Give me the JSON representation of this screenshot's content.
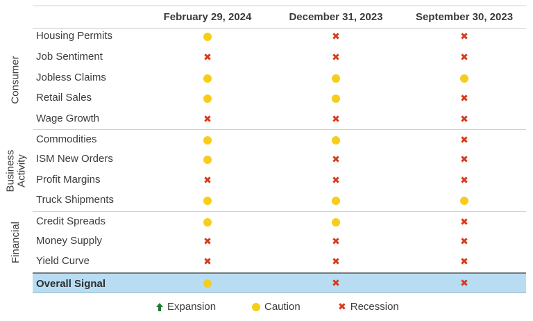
{
  "columns": [
    "February 29, 2024",
    "December 31, 2023",
    "September 30, 2023"
  ],
  "groups": [
    {
      "label": "Consumer"
    },
    {
      "label_lines": [
        "Business",
        "Activity"
      ]
    },
    {
      "label": "Financial"
    }
  ],
  "rows": [
    {
      "label": "Housing Permits",
      "signals": [
        "caution",
        "recession",
        "recession"
      ]
    },
    {
      "label": "Job Sentiment",
      "signals": [
        "recession",
        "recession",
        "recession"
      ]
    },
    {
      "label": "Jobless Claims",
      "signals": [
        "caution",
        "caution",
        "caution"
      ]
    },
    {
      "label": "Retail Sales",
      "signals": [
        "caution",
        "caution",
        "recession"
      ]
    },
    {
      "label": "Wage Growth",
      "signals": [
        "recession",
        "recession",
        "recession"
      ]
    },
    {
      "label": "Commodities",
      "signals": [
        "caution",
        "caution",
        "recession"
      ]
    },
    {
      "label": "ISM New Orders",
      "signals": [
        "caution",
        "recession",
        "recession"
      ]
    },
    {
      "label": "Profit Margins",
      "signals": [
        "recession",
        "recession",
        "recession"
      ]
    },
    {
      "label": "Truck Shipments",
      "signals": [
        "caution",
        "caution",
        "caution"
      ]
    },
    {
      "label": "Credit Spreads",
      "signals": [
        "caution",
        "caution",
        "recession"
      ]
    },
    {
      "label": "Money Supply",
      "signals": [
        "recession",
        "recession",
        "recession"
      ]
    },
    {
      "label": "Yield Curve",
      "signals": [
        "recession",
        "recession",
        "recession"
      ]
    }
  ],
  "overall": {
    "label": "Overall Signal",
    "signals": [
      "caution",
      "recession",
      "recession"
    ]
  },
  "legend": {
    "expansion": "Expansion",
    "caution": "Caution",
    "recession": "Recession"
  },
  "colors": {
    "caution": "#f6cd1b",
    "recession": "#d83a1c",
    "expansion": "#1e7a2e",
    "overall_highlight": "#b8ddf3"
  },
  "icons": {
    "expansion": "up-arrow-icon",
    "caution": "yellow-dot-icon",
    "recession": "red-x-icon"
  }
}
